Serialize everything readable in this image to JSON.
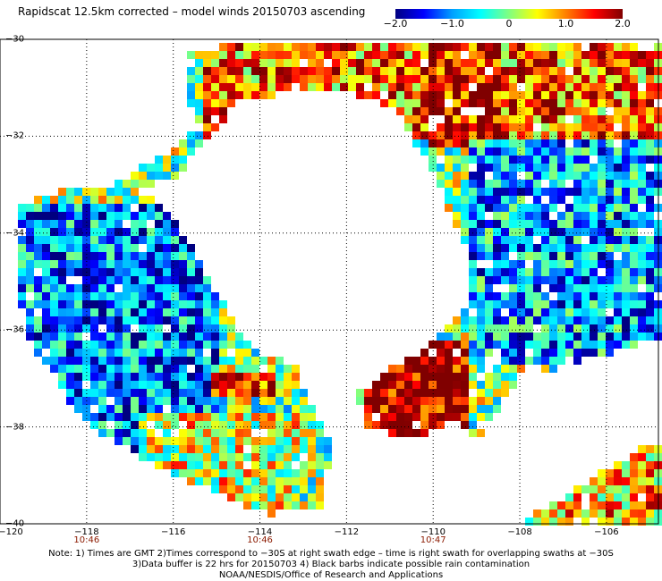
{
  "title": "Rapidscat 12.5km corrected – model winds 20150703 ascending",
  "colorbar": {
    "ticks": [
      {
        "value": -2.0,
        "label": "−2.0"
      },
      {
        "value": -1.0,
        "label": "−1.0"
      },
      {
        "value": 0,
        "label": "0"
      },
      {
        "value": 1.0,
        "label": "1.0"
      },
      {
        "value": 2.0,
        "label": "2.0"
      }
    ],
    "range": [
      -2.0,
      2.0
    ],
    "colors": [
      "#000080",
      "#0000ff",
      "#00a0ff",
      "#00ffff",
      "#80ff80",
      "#ffff00",
      "#ff8000",
      "#ff0000",
      "#800000"
    ]
  },
  "map": {
    "lon_range": [
      -120,
      -104.8
    ],
    "lat_range": [
      -30,
      -40
    ],
    "x_ticks": [
      "−120",
      "−118",
      "−116",
      "−114",
      "−112",
      "−110",
      "−108",
      "−106"
    ],
    "x_tick_values": [
      -120,
      -118,
      -116,
      -114,
      -112,
      -110,
      -108,
      -106
    ],
    "y_ticks": [
      "−30",
      "−32",
      "−34",
      "−36",
      "−38",
      "−40"
    ],
    "y_tick_values": [
      -30,
      -32,
      -34,
      -36,
      -38,
      -40
    ],
    "time_labels": [
      {
        "lon": -118,
        "text": "10:46"
      },
      {
        "lon": -114,
        "text": "10:46"
      },
      {
        "lon": -110,
        "text": "10:47"
      }
    ],
    "grid": "dotted",
    "field": "wind speed difference (corrected – model)"
  },
  "notes": [
    "Note: 1) Times are GMT 2)Times correspond to −30S at right swath edge – time is right swath for overlapping swaths at −30S",
    "3)Data buffer is 22 hrs for 20150703 4) Black barbs indicate possible rain contamination",
    "NOAA/NESDIS/Office of Research and Applications"
  ]
}
